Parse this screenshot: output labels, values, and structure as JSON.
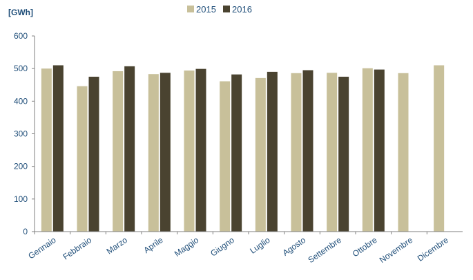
{
  "chart_data": {
    "type": "bar",
    "ylabel": "[GWh]",
    "ylim": [
      0,
      600
    ],
    "yticks": [
      0,
      100,
      200,
      300,
      400,
      500,
      600
    ],
    "legend_position": "top-center",
    "grid": false,
    "categories": [
      "Gennaio",
      "Febbraio",
      "Marzo",
      "Aprile",
      "Maggio",
      "Giugno",
      "Luglio",
      "Agosto",
      "Settembre",
      "Ottobre",
      "Novembre",
      "Dicembre"
    ],
    "series": [
      {
        "name": "2015",
        "color": "#c8c09a",
        "values": [
          500,
          446,
          492,
          483,
          494,
          461,
          471,
          486,
          487,
          501,
          486,
          510
        ]
      },
      {
        "name": "2016",
        "color": "#4a4330",
        "values": [
          510,
          475,
          507,
          487,
          499,
          482,
          490,
          495,
          475,
          497,
          null,
          null
        ]
      }
    ]
  }
}
